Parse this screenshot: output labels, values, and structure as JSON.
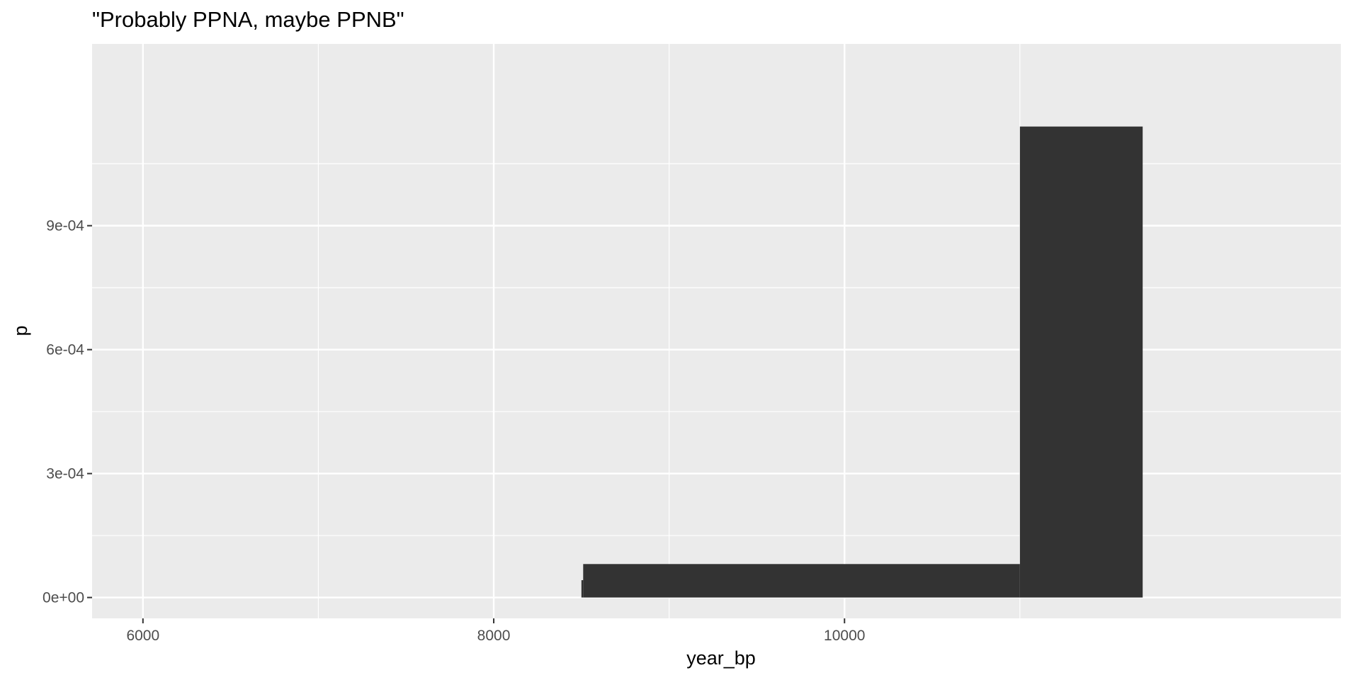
{
  "chart_data": {
    "type": "bar",
    "title": "\"Probably PPNA, maybe PPNB\"",
    "xlabel": "year_bp",
    "ylabel": "p",
    "xlim": [
      5710,
      12830
    ],
    "ylim": [
      -5.05e-05,
      0.00134
    ],
    "x_ticks": [
      6000,
      8000,
      10000
    ],
    "x_tick_labels": [
      "6000",
      "8000",
      "10000"
    ],
    "x_minor_ticks": [
      7000,
      9000,
      11000
    ],
    "y_ticks": [
      0,
      0.0003,
      0.0006,
      0.0009
    ],
    "y_tick_labels": [
      "0e+00",
      "3e-04",
      "6e-04",
      "9e-04"
    ],
    "y_minor_ticks": [
      0.00015,
      0.00045,
      0.00075,
      0.00105
    ],
    "bars": [
      {
        "x0": 8500,
        "x1": 8510,
        "y": 4.2e-05
      },
      {
        "x0": 8510,
        "x1": 11000,
        "y": 8.1e-05
      },
      {
        "x0": 11000,
        "x1": 11700,
        "y": 0.00114
      }
    ],
    "panel_background": "#ebebeb",
    "grid_color": "#ffffff",
    "bar_color": "#333333",
    "grid": true
  }
}
